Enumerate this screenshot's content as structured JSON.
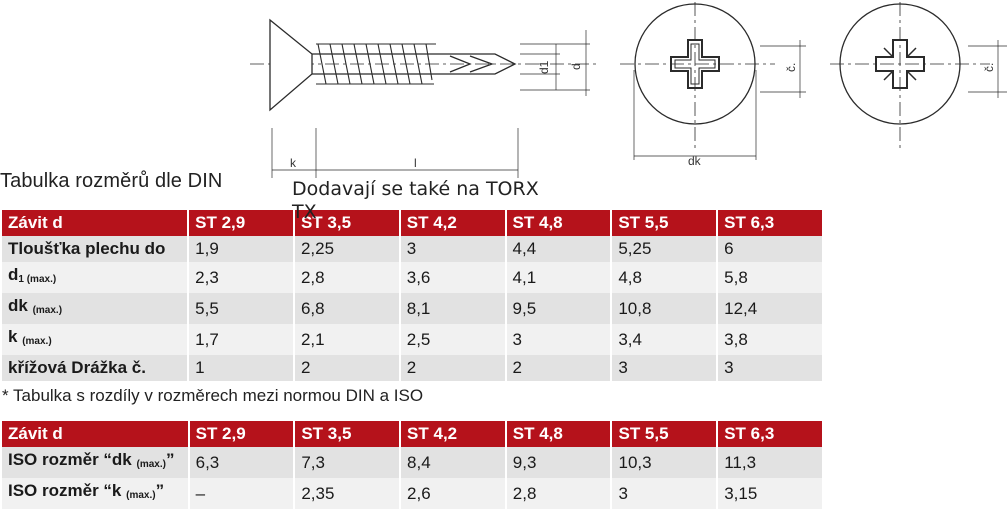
{
  "drawing": {
    "labels": {
      "d1": "d1",
      "d": "d",
      "c1": "č.",
      "c2": "č.",
      "dk": "dk",
      "k": "k",
      "l": "l"
    }
  },
  "caption": "Tabulka rozměrů dle DIN",
  "torx_note": "Dodavají se také na TORX TX",
  "din_table": {
    "header": [
      "Závit d",
      "ST 2,9",
      "ST 3,5",
      "ST 4,2",
      "ST 4,8",
      "ST 5,5",
      "ST 6,3"
    ],
    "rows": [
      {
        "label": "Tloušťka plechu do",
        "sub": "",
        "values": [
          "1,9",
          "2,25",
          "3",
          "4,4",
          "5,25",
          "6"
        ]
      },
      {
        "label": "d",
        "sub": "1 (max.)",
        "values": [
          "2,3",
          "2,8",
          "3,6",
          "4,1",
          "4,8",
          "5,8"
        ]
      },
      {
        "label": "dk",
        "sub": "(max.)",
        "values": [
          "5,5",
          "6,8",
          "8,1",
          "9,5",
          "10,8",
          "12,4"
        ]
      },
      {
        "label": "k",
        "sub": "(max.)",
        "values": [
          "1,7",
          "2,1",
          "2,5",
          "3",
          "3,4",
          "3,8"
        ]
      },
      {
        "label": "křížová Drážka č.",
        "sub": "",
        "values": [
          "1",
          "2",
          "2",
          "2",
          "3",
          "3"
        ]
      }
    ]
  },
  "iso_note": "* Tabulka s rozdíly v rozměrech mezi normou DIN a ISO",
  "iso_table": {
    "header": [
      "Závit d",
      "ST 2,9",
      "ST 3,5",
      "ST 4,2",
      "ST 4,8",
      "ST 5,5",
      "ST 6,3"
    ],
    "rows": [
      {
        "pre": "ISO rozměr “dk",
        "sub": "(max.)",
        "post": "”",
        "values": [
          "6,3",
          "7,3",
          "8,4",
          "9,3",
          "10,3",
          "11,3"
        ]
      },
      {
        "pre": "ISO rozměr “k",
        "sub": "(max.)",
        "post": "”",
        "values": [
          "–",
          "2,35",
          "2,6",
          "2,8",
          "3",
          "3,15"
        ]
      }
    ]
  }
}
